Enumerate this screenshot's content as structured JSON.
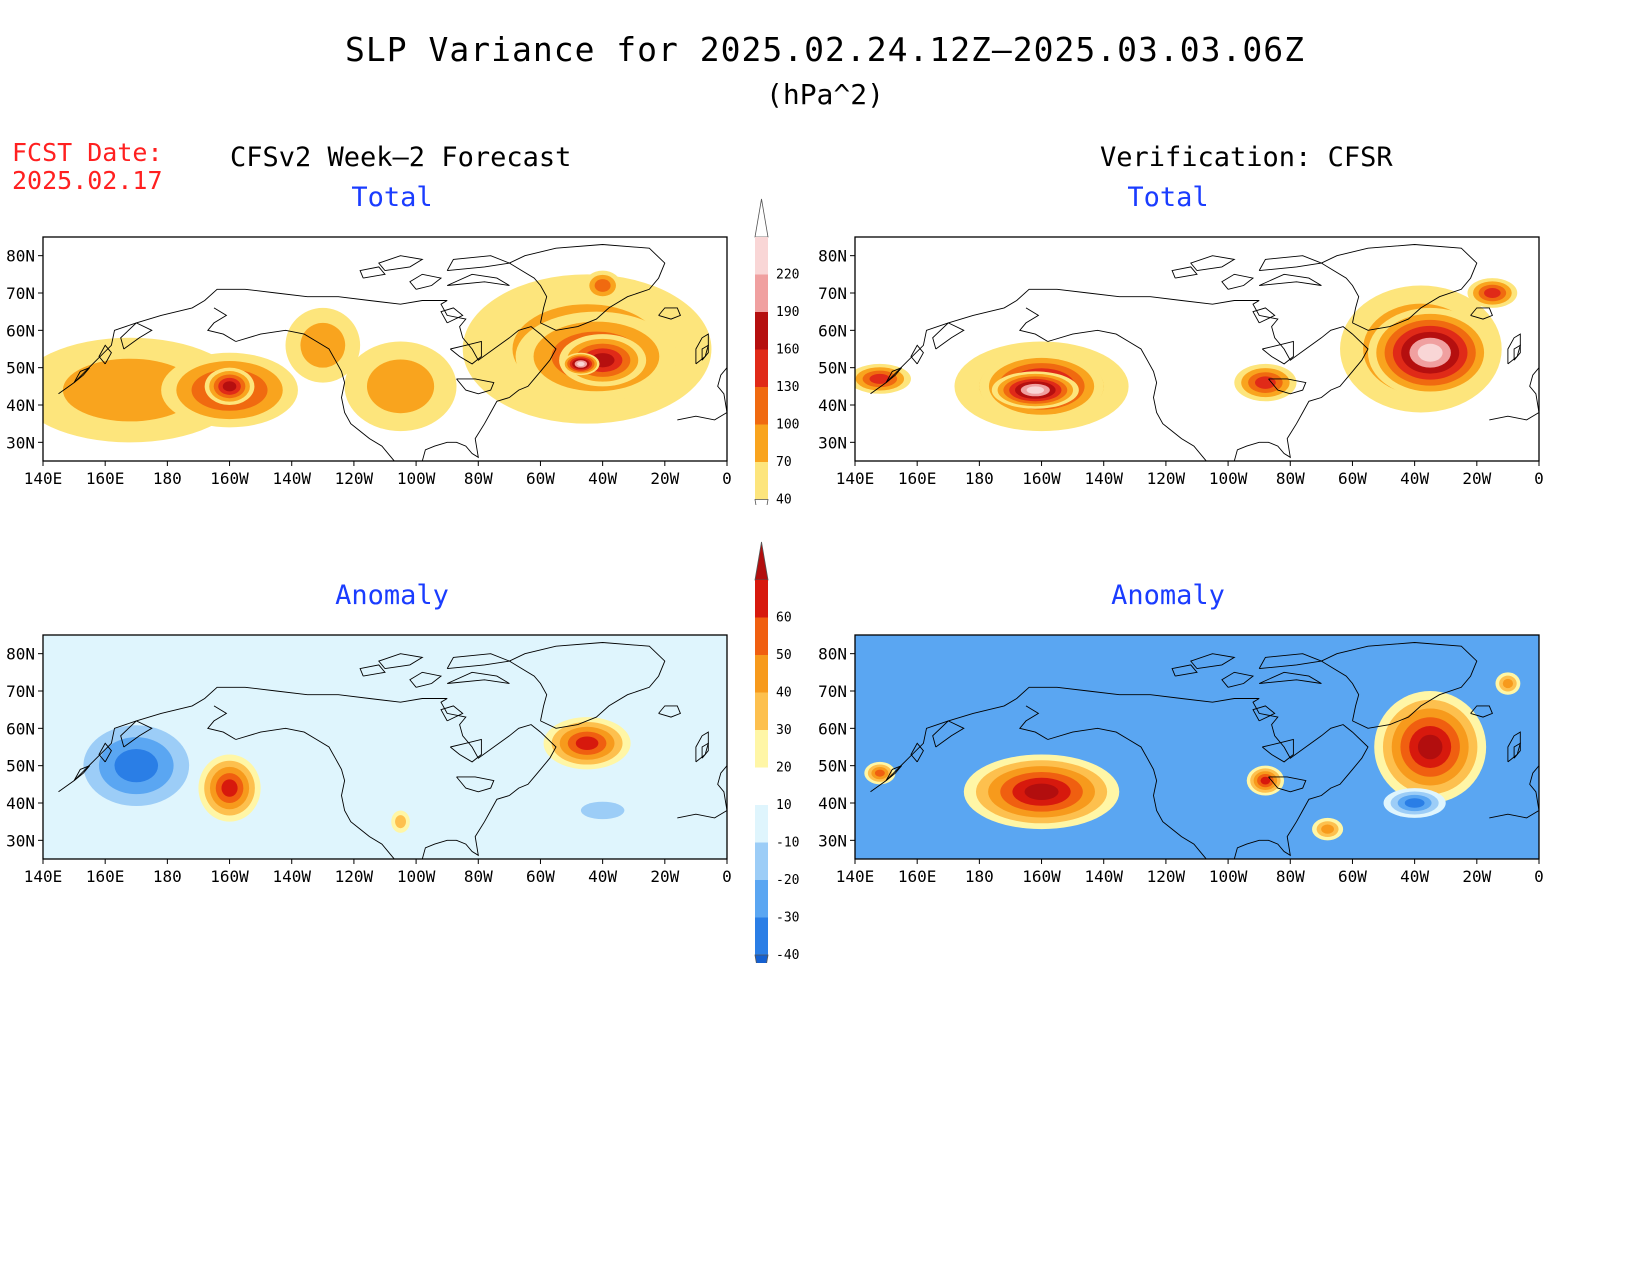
{
  "title": "SLP Variance for 2025.02.24.12Z—2025.03.03.06Z",
  "units": "(hPa^2)",
  "forecast": {
    "label": "FCST Date:",
    "date": "2025.02.17"
  },
  "left_heading": "CFSv2 Week—2 Forecast",
  "right_heading": "Verification: CFSR",
  "lon_labels": [
    "140E",
    "160E",
    "180",
    "160W",
    "140W",
    "120W",
    "100W",
    "80W",
    "60W",
    "40W",
    "20W",
    "0"
  ],
  "lat_labels": [
    "30N",
    "40N",
    "50N",
    "60N",
    "70N",
    "80N"
  ],
  "colorbar_total": {
    "labels": [
      "40",
      "70",
      "100",
      "130",
      "160",
      "190",
      "220"
    ],
    "colors": [
      "#fde57c",
      "#f9a41e",
      "#f06a10",
      "#e02a18",
      "#b50f0f",
      "#f0a0a0",
      "#f9d6d6"
    ],
    "below_color": "#ffffff",
    "above_color": "#ffffff"
  },
  "colorbar_anomaly": {
    "labels": [
      "-40",
      "-30",
      "-20",
      "-10",
      "10",
      "20",
      "30",
      "40",
      "50",
      "60"
    ],
    "colors": [
      "#2a7ee6",
      "#5aa6f2",
      "#9ccdf7",
      "#dff5fd",
      "#ffffff",
      "#fff6a6",
      "#fdc04e",
      "#f79a1c",
      "#f05f10",
      "#d7190d"
    ],
    "below_color": "#1560d0",
    "above_color": "#b20e0e"
  },
  "panels": [
    {
      "title": "Total",
      "colors": [
        "#fde57c",
        "#f9a41e",
        "#f06a10",
        "#e02a18",
        "#b50f0f",
        "#f0a0a0",
        "#f9d6d6"
      ],
      "regions": [
        {
          "lon": 168,
          "lat": 44,
          "rlon": 36,
          "rlat": 14,
          "level": 1
        },
        {
          "lon": 200,
          "lat": 44,
          "rlon": 22,
          "rlat": 10,
          "level": 3
        },
        {
          "lon": 200,
          "lat": 45,
          "rlon": 8,
          "rlat": 5,
          "level": 4
        },
        {
          "lon": 230,
          "lat": 56,
          "rlon": 12,
          "rlat": 10,
          "level": 1
        },
        {
          "lon": 255,
          "lat": 45,
          "rlon": 18,
          "rlat": 12,
          "level": 1
        },
        {
          "lon": 315,
          "lat": 55,
          "rlon": 40,
          "rlat": 20,
          "level": 1
        },
        {
          "lon": 318,
          "lat": 53,
          "rlon": 26,
          "rlat": 12,
          "level": 3
        },
        {
          "lon": 320,
          "lat": 52,
          "rlon": 14,
          "rlat": 7,
          "level": 4
        },
        {
          "lon": 313,
          "lat": 51,
          "rlon": 6,
          "rlat": 3,
          "level": 6
        },
        {
          "lon": 320,
          "lat": 72,
          "rlon": 6,
          "rlat": 4,
          "level": 2
        }
      ]
    },
    {
      "title": "Total",
      "colors": [
        "#fde57c",
        "#f9a41e",
        "#f06a10",
        "#e02a18",
        "#b50f0f",
        "#f0a0a0",
        "#f9d6d6"
      ],
      "regions": [
        {
          "lon": 148,
          "lat": 47,
          "rlon": 10,
          "rlat": 4,
          "level": 3
        },
        {
          "lon": 200,
          "lat": 45,
          "rlon": 28,
          "rlat": 12,
          "level": 2
        },
        {
          "lon": 200,
          "lat": 45,
          "rlon": 20,
          "rlat": 9,
          "level": 5
        },
        {
          "lon": 198,
          "lat": 44,
          "rlon": 14,
          "rlat": 5,
          "level": 6
        },
        {
          "lon": 272,
          "lat": 46,
          "rlon": 10,
          "rlat": 5,
          "level": 3
        },
        {
          "lon": 322,
          "lat": 55,
          "rlon": 26,
          "rlat": 17,
          "level": 2
        },
        {
          "lon": 325,
          "lat": 54,
          "rlon": 20,
          "rlat": 12,
          "level": 6
        },
        {
          "lon": 345,
          "lat": 70,
          "rlon": 8,
          "rlat": 4,
          "level": 3
        }
      ]
    },
    {
      "title": "Anomaly",
      "colors": [
        "#1560d0",
        "#2a7ee6",
        "#5aa6f2",
        "#9ccdf7",
        "#dff5fd",
        "#fff6a6",
        "#fdc04e",
        "#f79a1c",
        "#f05f10",
        "#d7190d",
        "#b20e0e"
      ],
      "regions": [
        {
          "lon": 170,
          "lat": 50,
          "rlon": 22,
          "rlat": 14,
          "level": 1
        },
        {
          "lon": 200,
          "lat": 44,
          "rlon": 10,
          "rlat": 9,
          "level": 9
        },
        {
          "lon": 315,
          "lat": 56,
          "rlon": 14,
          "rlat": 7,
          "level": 9
        },
        {
          "lon": 320,
          "lat": 38,
          "rlon": 12,
          "rlat": 4,
          "level": 3
        },
        {
          "lon": 255,
          "lat": 35,
          "rlon": 3,
          "rlat": 3,
          "level": 6
        }
      ]
    },
    {
      "title": "Anomaly",
      "colors": [
        "#1560d0",
        "#2a7ee6",
        "#5aa6f2",
        "#9ccdf7",
        "#dff5fd",
        "#fff6a6",
        "#fdc04e",
        "#f79a1c",
        "#f05f10",
        "#d7190d",
        "#b20e0e"
      ],
      "regions": [
        {
          "lon": 200,
          "lat": 43,
          "rlon": 25,
          "rlat": 10,
          "level": 10
        },
        {
          "lon": 325,
          "lat": 55,
          "rlon": 18,
          "rlat": 15,
          "level": 10
        },
        {
          "lon": 272,
          "lat": 46,
          "rlon": 6,
          "rlat": 4,
          "level": 9
        },
        {
          "lon": 148,
          "lat": 48,
          "rlon": 5,
          "rlat": 3,
          "level": 8
        },
        {
          "lon": 350,
          "lat": 72,
          "rlon": 4,
          "rlat": 3,
          "level": 7
        },
        {
          "lon": 292,
          "lat": 33,
          "rlon": 5,
          "rlat": 3,
          "level": 7
        },
        {
          "lon": 320,
          "lat": 40,
          "rlon": 10,
          "rlat": 4,
          "level": 1
        }
      ]
    }
  ]
}
